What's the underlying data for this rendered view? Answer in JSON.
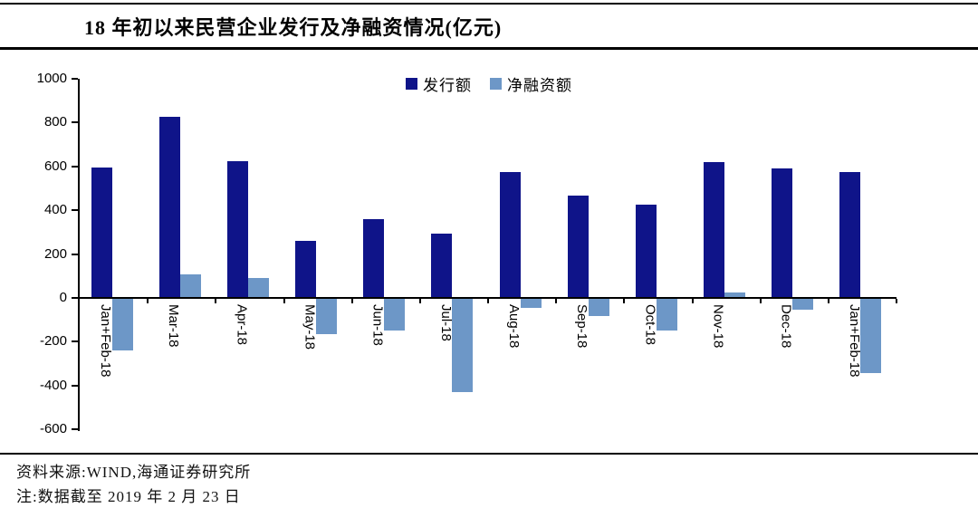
{
  "chart_data": {
    "type": "bar",
    "title": "18 年初以来民营企业发行及净融资情况(亿元)",
    "categories": [
      "Jan+Feb-18",
      "Mar-18",
      "Apr-18",
      "May-18",
      "Jun-18",
      "Jul-18",
      "Aug-18",
      "Sep-18",
      "Oct-18",
      "Nov-18",
      "Dec-18",
      "Jan+Feb-18"
    ],
    "series": [
      {
        "name": "发行额",
        "color": "#0F1489",
        "values": [
          595,
          825,
          625,
          260,
          360,
          295,
          575,
          465,
          425,
          620,
          590,
          575
        ]
      },
      {
        "name": "净融资额",
        "color": "#6D97C7",
        "values": [
          -240,
          105,
          90,
          -165,
          -150,
          -430,
          -45,
          -85,
          -150,
          25,
          -55,
          -345
        ]
      }
    ],
    "ylim": [
      -600,
      1000
    ],
    "yticks": [
      1000,
      800,
      600,
      400,
      200,
      0,
      -200,
      -400,
      -600
    ],
    "grid": false,
    "legend_position": "top-center",
    "axis_color": "#000000"
  },
  "footer": {
    "source": "资料来源:WIND,海通证券研究所",
    "note": "注:数据截至 2019 年 2 月 23 日"
  }
}
